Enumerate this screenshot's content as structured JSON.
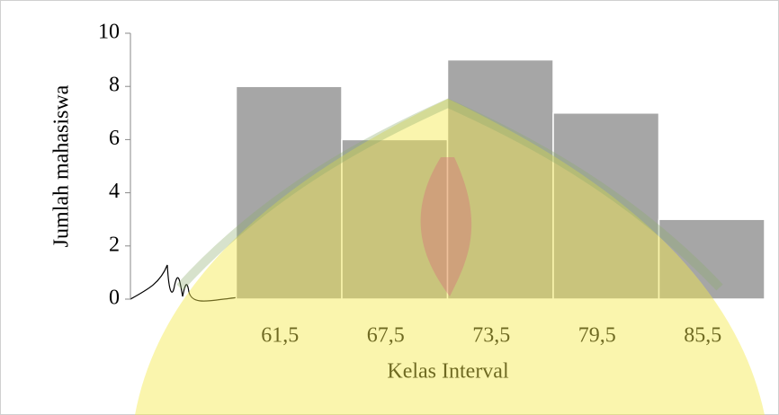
{
  "chart_data": {
    "type": "bar",
    "xlabel": "Kelas Interval",
    "ylabel": "Jumlah mahasiswa",
    "categories": [
      null,
      "61,5",
      "67,5",
      "73,5",
      "79,5",
      "85,5"
    ],
    "values": [
      null,
      8,
      6,
      9,
      7,
      3
    ],
    "color": "#a6a6a6",
    "ylim": [
      0,
      10
    ],
    "yticks": [
      0,
      2,
      4,
      6,
      8,
      10
    ]
  }
}
